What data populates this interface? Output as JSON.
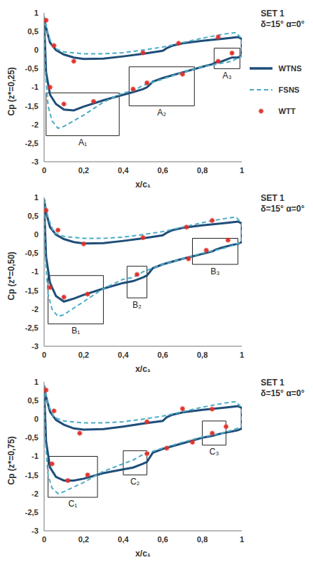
{
  "chart_data": [
    {
      "type": "line",
      "title": "SET 1",
      "subtitle": "δ=15° α=0°",
      "y_label": "Cp (z*=0,25)",
      "x_label": "x/c₁",
      "legend": "right",
      "xlim": [
        0,
        1
      ],
      "xticks": [
        0,
        {
          "value": 0.2,
          "label": "0,2"
        },
        {
          "value": 0.4,
          "label": "0,4"
        },
        {
          "value": 0.6,
          "label": "0,6"
        },
        {
          "value": 0.8,
          "label": "0,8"
        },
        1
      ],
      "ylim": [
        -3,
        1
      ],
      "yticks": [
        -3,
        {
          "value": -2.5,
          "label": "-2,5"
        },
        -2,
        {
          "value": -1.5,
          "label": "-1,5"
        },
        -1,
        {
          "value": -0.5,
          "label": "-0,5"
        },
        0,
        {
          "value": 0.5,
          "label": "0,5"
        },
        1
      ],
      "series": [
        {
          "name": "WTNS",
          "type": "line",
          "color": "#1f4e79",
          "line_style": "solid",
          "x": [
            0,
            0.01,
            0.03,
            0.06,
            0.1,
            0.15,
            0.2,
            0.3,
            0.4,
            0.5,
            0.6,
            0.62,
            0.65,
            0.7,
            0.8,
            0.9,
            0.95,
            0.98,
            1,
            1,
            0.98,
            0.95,
            0.9,
            0.87,
            0.85,
            0.8,
            0.7,
            0.6,
            0.55,
            0.52,
            0.5,
            0.45,
            0.4,
            0.3,
            0.2,
            0.15,
            0.1,
            0.06,
            0.03,
            0.01,
            0
          ],
          "values": [
            0.85,
            0.6,
            0.2,
            0,
            -0.12,
            -0.2,
            -0.24,
            -0.23,
            -0.17,
            -0.1,
            -0.02,
            0.05,
            0.12,
            0.18,
            0.25,
            0.3,
            0.33,
            0.35,
            0.3,
            -0.15,
            -0.2,
            -0.2,
            -0.3,
            -0.33,
            -0.38,
            -0.45,
            -0.6,
            -0.75,
            -0.85,
            -1.0,
            -1.05,
            -1.13,
            -1.2,
            -1.35,
            -1.52,
            -1.62,
            -1.6,
            -1.45,
            -1.2,
            -0.6,
            0.8
          ]
        },
        {
          "name": "FSNS",
          "type": "line",
          "color": "#4bacc6",
          "line_style": "dashed",
          "x": [
            0,
            0.02,
            0.05,
            0.1,
            0.2,
            0.3,
            0.4,
            0.5,
            0.6,
            0.7,
            0.8,
            0.9,
            0.97,
            1,
            1,
            0.95,
            0.9,
            0.8,
            0.7,
            0.6,
            0.5,
            0.45,
            0.4,
            0.3,
            0.2,
            0.1,
            0.07,
            0.04,
            0.02,
            0.005,
            0
          ],
          "values": [
            0.9,
            0.4,
            0.05,
            -0.05,
            -0.1,
            -0.1,
            -0.07,
            0,
            0.08,
            0.2,
            0.32,
            0.42,
            0.47,
            0.3,
            -0.15,
            -0.3,
            -0.35,
            -0.45,
            -0.6,
            -0.78,
            -0.95,
            -1.1,
            -1.15,
            -1.4,
            -1.75,
            -2.05,
            -2.1,
            -1.9,
            -1.5,
            -0.5,
            0.9
          ]
        },
        {
          "name": "WTT",
          "type": "scatter",
          "color": "#e0302a",
          "marker": "asterisk",
          "x": [
            0.01,
            0.05,
            0.15,
            0.5,
            0.68,
            0.88,
            0.03,
            0.1,
            0.25,
            0.45,
            0.52,
            0.7,
            0.88,
            0.95
          ],
          "values": [
            0.8,
            0.12,
            -0.3,
            -0.07,
            0.18,
            0.35,
            -1.0,
            -1.45,
            -1.38,
            -1.05,
            -0.88,
            -0.65,
            -0.3,
            -0.08
          ]
        }
      ],
      "boxes": [
        {
          "label": "A₁",
          "x": [
            0.01,
            0.38
          ],
          "y": [
            -2.3,
            -1.15
          ]
        },
        {
          "label": "A₂",
          "x": [
            0.43,
            0.76
          ],
          "y": [
            -1.5,
            -0.45
          ]
        },
        {
          "label": "A₃",
          "x": [
            0.86,
            0.99
          ],
          "y": [
            -0.5,
            0.05
          ]
        }
      ]
    },
    {
      "type": "line",
      "title": "SET 1",
      "subtitle": "δ=15° α=0°",
      "y_label": "Cp (z*=0,50)",
      "x_label": "x/c₁",
      "xlim": [
        0,
        1
      ],
      "xticks": [
        0,
        {
          "value": 0.2,
          "label": "0,2"
        },
        {
          "value": 0.4,
          "label": "0,4"
        },
        {
          "value": 0.6,
          "label": "0,6"
        },
        {
          "value": 0.8,
          "label": "0,8"
        },
        1
      ],
      "ylim": [
        -3,
        1
      ],
      "yticks": [
        -3,
        {
          "value": -2.5,
          "label": "-2,5"
        },
        -2,
        {
          "value": -1.5,
          "label": "-1,5"
        },
        -1,
        {
          "value": -0.5,
          "label": "-0,5"
        },
        0,
        {
          "value": 0.5,
          "label": "0,5"
        },
        1
      ],
      "series": [
        {
          "name": "WTNS",
          "type": "line",
          "color": "#1f4e79",
          "line_style": "solid",
          "x": [
            0,
            0.01,
            0.03,
            0.06,
            0.1,
            0.15,
            0.2,
            0.3,
            0.4,
            0.5,
            0.6,
            0.62,
            0.65,
            0.7,
            0.8,
            0.9,
            0.95,
            0.98,
            1,
            1,
            0.98,
            0.95,
            0.9,
            0.87,
            0.85,
            0.8,
            0.7,
            0.6,
            0.55,
            0.52,
            0.5,
            0.45,
            0.4,
            0.3,
            0.2,
            0.15,
            0.1,
            0.06,
            0.03,
            0.01,
            0
          ],
          "values": [
            0.95,
            0.6,
            0.2,
            0,
            -0.12,
            -0.2,
            -0.24,
            -0.23,
            -0.17,
            -0.1,
            -0.02,
            0.05,
            0.12,
            0.18,
            0.25,
            0.3,
            0.33,
            0.35,
            0.3,
            -0.2,
            -0.25,
            -0.28,
            -0.35,
            -0.4,
            -0.45,
            -0.52,
            -0.65,
            -0.8,
            -0.9,
            -1.1,
            -1.15,
            -1.25,
            -1.3,
            -1.45,
            -1.62,
            -1.72,
            -1.8,
            -1.65,
            -1.3,
            -0.6,
            0.85
          ]
        },
        {
          "name": "FSNS",
          "type": "line",
          "color": "#4bacc6",
          "line_style": "dashed",
          "x": [
            0,
            0.02,
            0.05,
            0.1,
            0.2,
            0.3,
            0.4,
            0.5,
            0.6,
            0.7,
            0.8,
            0.9,
            0.97,
            1,
            1,
            0.95,
            0.9,
            0.8,
            0.7,
            0.6,
            0.5,
            0.45,
            0.4,
            0.3,
            0.2,
            0.1,
            0.07,
            0.04,
            0.02,
            0.005,
            0
          ],
          "values": [
            0.95,
            0.45,
            0.05,
            -0.05,
            -0.1,
            -0.1,
            -0.07,
            0,
            0.08,
            0.2,
            0.32,
            0.42,
            0.47,
            0.3,
            -0.2,
            -0.3,
            -0.38,
            -0.5,
            -0.65,
            -0.8,
            -1.0,
            -1.15,
            -1.2,
            -1.45,
            -1.8,
            -2.15,
            -2.2,
            -2.0,
            -1.6,
            -0.5,
            0.95
          ]
        },
        {
          "name": "WTT",
          "type": "scatter",
          "color": "#e0302a",
          "marker": "asterisk",
          "x": [
            0.01,
            0.07,
            0.2,
            0.5,
            0.72,
            0.85,
            0.03,
            0.1,
            0.22,
            0.47,
            0.73,
            0.82,
            0.93
          ],
          "values": [
            0.65,
            0.12,
            -0.25,
            -0.08,
            0.2,
            0.38,
            -1.42,
            -1.68,
            -1.6,
            -1.07,
            -0.65,
            -0.42,
            -0.15
          ]
        }
      ],
      "boxes": [
        {
          "label": "B₁",
          "x": [
            0.02,
            0.3
          ],
          "y": [
            -2.4,
            -1.1
          ]
        },
        {
          "label": "B₂",
          "x": [
            0.42,
            0.52
          ],
          "y": [
            -1.7,
            -0.85
          ]
        },
        {
          "label": "B₃",
          "x": [
            0.75,
            0.98
          ],
          "y": [
            -0.8,
            -0.1
          ]
        }
      ]
    },
    {
      "type": "line",
      "title": "SET 1",
      "subtitle": "δ=15° α=0°",
      "y_label": "Cp (z*=0,75)",
      "x_label": "x/c₁",
      "xlim": [
        0,
        1
      ],
      "xticks": [
        0,
        {
          "value": 0.2,
          "label": "0,2"
        },
        {
          "value": 0.4,
          "label": "0,4"
        },
        {
          "value": 0.6,
          "label": "0,6"
        },
        {
          "value": 0.8,
          "label": "0,8"
        },
        1
      ],
      "ylim": [
        -3,
        1
      ],
      "yticks": [
        -3,
        {
          "value": -2.5,
          "label": "-2,5"
        },
        -2,
        {
          "value": -1.5,
          "label": "-1,5"
        },
        -1,
        {
          "value": -0.5,
          "label": "-0,5"
        },
        0,
        {
          "value": 0.5,
          "label": "0,5"
        },
        1
      ],
      "series": [
        {
          "name": "WTNS",
          "type": "line",
          "color": "#1f4e79",
          "line_style": "solid",
          "x": [
            0,
            0.01,
            0.03,
            0.06,
            0.1,
            0.15,
            0.2,
            0.3,
            0.4,
            0.5,
            0.6,
            0.62,
            0.65,
            0.7,
            0.8,
            0.9,
            0.95,
            0.98,
            1,
            1,
            0.98,
            0.95,
            0.9,
            0.87,
            0.85,
            0.8,
            0.7,
            0.6,
            0.55,
            0.52,
            0.5,
            0.45,
            0.4,
            0.3,
            0.2,
            0.15,
            0.1,
            0.06,
            0.03,
            0.01,
            0
          ],
          "values": [
            0.9,
            0.6,
            0.2,
            -0.02,
            -0.15,
            -0.25,
            -0.28,
            -0.27,
            -0.2,
            -0.12,
            -0.05,
            0.05,
            0.12,
            0.18,
            0.25,
            0.3,
            0.33,
            0.35,
            0.3,
            -0.25,
            -0.3,
            -0.33,
            -0.38,
            -0.42,
            -0.45,
            -0.5,
            -0.65,
            -0.8,
            -0.9,
            -1.15,
            -1.2,
            -1.3,
            -1.35,
            -1.45,
            -1.6,
            -1.65,
            -1.65,
            -1.55,
            -1.3,
            -0.6,
            0.85
          ]
        },
        {
          "name": "FSNS",
          "type": "line",
          "color": "#4bacc6",
          "line_style": "dashed",
          "x": [
            0,
            0.02,
            0.05,
            0.1,
            0.2,
            0.3,
            0.4,
            0.5,
            0.6,
            0.7,
            0.8,
            0.9,
            0.97,
            1,
            1,
            0.95,
            0.9,
            0.8,
            0.7,
            0.6,
            0.5,
            0.45,
            0.4,
            0.3,
            0.2,
            0.1,
            0.07,
            0.04,
            0.02,
            0.005,
            0
          ],
          "values": [
            0.9,
            0.4,
            0.05,
            -0.05,
            -0.1,
            -0.1,
            -0.07,
            0,
            0.08,
            0.2,
            0.32,
            0.42,
            0.47,
            0.3,
            -0.2,
            -0.3,
            -0.38,
            -0.48,
            -0.62,
            -0.78,
            -0.95,
            -1.1,
            -1.2,
            -1.4,
            -1.7,
            -1.95,
            -2.0,
            -1.85,
            -1.5,
            -0.5,
            0.9
          ]
        },
        {
          "name": "WTT",
          "type": "scatter",
          "color": "#e0302a",
          "marker": "asterisk",
          "x": [
            0.01,
            0.05,
            0.18,
            0.52,
            0.7,
            0.85,
            0.04,
            0.12,
            0.22,
            0.52,
            0.62,
            0.75,
            0.85,
            0.92
          ],
          "values": [
            0.78,
            0.22,
            -0.38,
            -0.07,
            0.28,
            0.27,
            -1.2,
            -1.65,
            -1.5,
            -0.93,
            -0.78,
            -0.62,
            -0.38,
            -0.2
          ]
        }
      ],
      "boxes": [
        {
          "label": "C₁",
          "x": [
            0.02,
            0.27
          ],
          "y": [
            -2.1,
            -1.0
          ]
        },
        {
          "label": "C₂",
          "x": [
            0.4,
            0.52
          ],
          "y": [
            -1.5,
            -0.85
          ]
        },
        {
          "label": "C₃",
          "x": [
            0.8,
            0.92
          ],
          "y": [
            -0.7,
            -0.05
          ]
        }
      ]
    }
  ]
}
